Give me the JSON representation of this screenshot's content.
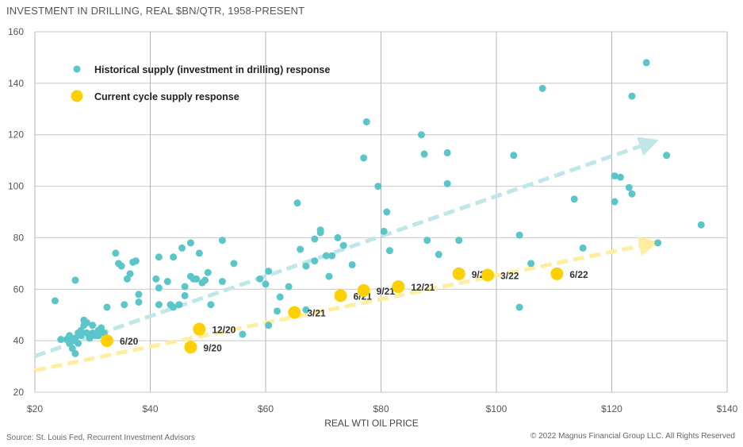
{
  "chart_data": {
    "type": "scatter",
    "title": "INVESTMENT IN DRILLING, REAL $BN/QTR, 1958-PRESENT",
    "xlabel": "REAL WTI OIL PRICE",
    "ylabel": "",
    "xlim": [
      20,
      140
    ],
    "ylim": [
      20,
      160
    ],
    "x_ticks": [
      20,
      40,
      60,
      80,
      100,
      120,
      140
    ],
    "y_ticks": [
      20,
      40,
      60,
      80,
      100,
      120,
      140,
      160
    ],
    "x_tick_prefix": "$",
    "grid": true,
    "legend_position": "top-left",
    "series": [
      {
        "name": "Historical supply (investment in drilling) response",
        "color": "#5bc6c9",
        "points": [
          [
            23.5,
            55.5
          ],
          [
            24.5,
            40.5
          ],
          [
            25.5,
            40.5
          ],
          [
            26,
            39
          ],
          [
            26,
            42
          ],
          [
            26.5,
            37
          ],
          [
            26.5,
            40
          ],
          [
            27,
            35
          ],
          [
            27,
            41
          ],
          [
            27.5,
            43
          ],
          [
            27,
            63.5
          ],
          [
            27.5,
            39
          ],
          [
            28,
            42
          ],
          [
            28,
            44
          ],
          [
            28.5,
            48
          ],
          [
            28.5,
            46
          ],
          [
            29,
            47
          ],
          [
            29,
            43
          ],
          [
            29.5,
            41
          ],
          [
            30,
            43
          ],
          [
            30,
            46
          ],
          [
            30.5,
            42
          ],
          [
            31,
            44
          ],
          [
            31.5,
            45
          ],
          [
            31,
            42
          ],
          [
            32,
            43
          ],
          [
            32.5,
            53
          ],
          [
            34,
            74
          ],
          [
            34.5,
            70
          ],
          [
            35,
            69
          ],
          [
            35.5,
            54
          ],
          [
            36,
            64
          ],
          [
            36.5,
            66
          ],
          [
            37,
            70.5
          ],
          [
            37.5,
            71
          ],
          [
            38,
            58
          ],
          [
            38,
            55
          ],
          [
            41,
            64
          ],
          [
            41.5,
            72.5
          ],
          [
            41.5,
            60.5
          ],
          [
            41.5,
            54
          ],
          [
            43,
            63
          ],
          [
            43.5,
            54
          ],
          [
            44,
            72.5
          ],
          [
            44,
            53
          ],
          [
            45,
            54
          ],
          [
            45.5,
            76
          ],
          [
            46,
            57.5
          ],
          [
            46,
            61
          ],
          [
            47,
            78
          ],
          [
            47,
            65
          ],
          [
            47.5,
            64
          ],
          [
            48,
            64
          ],
          [
            48.5,
            74
          ],
          [
            49,
            62.5
          ],
          [
            49.5,
            63.5
          ],
          [
            50,
            66.5
          ],
          [
            50.5,
            54
          ],
          [
            52.5,
            79
          ],
          [
            52.5,
            63
          ],
          [
            54.5,
            70
          ],
          [
            56,
            42.5
          ],
          [
            59,
            64
          ],
          [
            60,
            62
          ],
          [
            60.5,
            67
          ],
          [
            60.5,
            46
          ],
          [
            62,
            51.5
          ],
          [
            62.5,
            57
          ],
          [
            64,
            61
          ],
          [
            64.5,
            51
          ],
          [
            65.5,
            93.5
          ],
          [
            66,
            75.5
          ],
          [
            67,
            69
          ],
          [
            67,
            52
          ],
          [
            68.5,
            79.5
          ],
          [
            68.5,
            71
          ],
          [
            69.5,
            82
          ],
          [
            69.5,
            83
          ],
          [
            70.5,
            73
          ],
          [
            71,
            65
          ],
          [
            71.5,
            73
          ],
          [
            72.5,
            80
          ],
          [
            73.5,
            77
          ],
          [
            75,
            69.5
          ],
          [
            77,
            111
          ],
          [
            77.5,
            125
          ],
          [
            79.5,
            100
          ],
          [
            80.5,
            82.5
          ],
          [
            81,
            90
          ],
          [
            81.5,
            75
          ],
          [
            87,
            120
          ],
          [
            87.5,
            112.5
          ],
          [
            88,
            79
          ],
          [
            90,
            73.5
          ],
          [
            91.5,
            113
          ],
          [
            91.5,
            101
          ],
          [
            93.5,
            79
          ],
          [
            103,
            112
          ],
          [
            104,
            81
          ],
          [
            104,
            53
          ],
          [
            106,
            70
          ],
          [
            108,
            138
          ],
          [
            113.5,
            95
          ],
          [
            115,
            76
          ],
          [
            120.5,
            94
          ],
          [
            120.5,
            104
          ],
          [
            121.5,
            103.5
          ],
          [
            123,
            99.5
          ],
          [
            123.5,
            97
          ],
          [
            123.5,
            135
          ],
          [
            126,
            148
          ],
          [
            128,
            78
          ],
          [
            129.5,
            112
          ],
          [
            135.5,
            85
          ]
        ]
      },
      {
        "name": "Current cycle supply response",
        "color": "#ffd000",
        "points": [
          {
            "x": 32.5,
            "y": 40,
            "label": "6/20"
          },
          {
            "x": 47,
            "y": 37.5,
            "label": "9/20"
          },
          {
            "x": 48.5,
            "y": 44.5,
            "label": "12/20"
          },
          {
            "x": 65,
            "y": 51,
            "label": "3/21"
          },
          {
            "x": 73,
            "y": 57.5,
            "label": "6/21"
          },
          {
            "x": 77,
            "y": 59.5,
            "label": "9/21"
          },
          {
            "x": 83,
            "y": 61,
            "label": "12/21"
          },
          {
            "x": 93.5,
            "y": 66,
            "label": "9/22"
          },
          {
            "x": 98.5,
            "y": 65.5,
            "label": "3/22"
          },
          {
            "x": 110.5,
            "y": 66,
            "label": "6/22"
          }
        ]
      }
    ],
    "trend_arrows": [
      {
        "from": [
          20,
          34
        ],
        "to": [
          127.5,
          117.5
        ],
        "color": "#bfe6e8"
      },
      {
        "from": [
          20,
          28.5
        ],
        "to": [
          127.5,
          78
        ],
        "color": "#ffeea0"
      }
    ]
  },
  "footer": {
    "source": "Source: St. Louis Fed, Recurrent Investment Advisors",
    "copyright": "© 2022 Magnus Financial Group LLC. All Rights Reserved"
  }
}
